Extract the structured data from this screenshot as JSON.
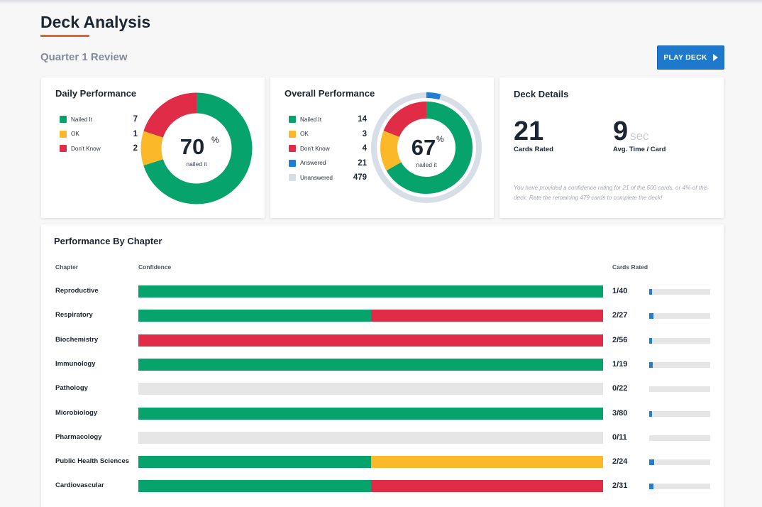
{
  "page": {
    "title": "Deck Analysis",
    "subtitle": "Quarter 1 Review",
    "play_button": "PLAY DECK",
    "accent": "#e8611f",
    "button_color": "#1e78cc"
  },
  "colors": {
    "nailed": "#07a36d",
    "ok": "#fbb829",
    "dont_know": "#e02c47",
    "answered": "#1f7fd6",
    "unanswered": "#d8dee8",
    "empty": "#e6e6e6"
  },
  "daily": {
    "title": "Daily Performance",
    "legend": [
      {
        "label": "Nailed It",
        "count": "7",
        "color": "#07a36d"
      },
      {
        "label": "OK",
        "count": "1",
        "color": "#fbb829"
      },
      {
        "label": "Don't Know",
        "count": "2",
        "color": "#e02c47"
      }
    ],
    "percent": "70",
    "percent_sign": "%",
    "caption": "nailed it",
    "segments": [
      {
        "value": 7,
        "color": "#07a36d"
      },
      {
        "value": 1,
        "color": "#fbb829"
      },
      {
        "value": 2,
        "color": "#e02c47"
      }
    ]
  },
  "overall": {
    "title": "Overall Performance",
    "legend": [
      {
        "label": "Nailed It",
        "count": "14",
        "color": "#07a36d"
      },
      {
        "label": "OK",
        "count": "3",
        "color": "#fbb829"
      },
      {
        "label": "Don't Know",
        "count": "4",
        "color": "#e02c47"
      },
      {
        "label": "Answered",
        "count": "21",
        "color": "#1f7fd6"
      },
      {
        "label": "Unanswered",
        "count": "479",
        "color": "#d8dee8"
      }
    ],
    "percent": "67",
    "percent_sign": "%",
    "caption": "nailed it",
    "inner_segments": [
      {
        "value": 14,
        "color": "#07a36d"
      },
      {
        "value": 3,
        "color": "#fbb829"
      },
      {
        "value": 4,
        "color": "#e02c47"
      }
    ],
    "outer_segments": [
      {
        "value": 21,
        "color": "#1f7fd6"
      },
      {
        "value": 479,
        "color": "#d8dee8"
      }
    ]
  },
  "deck_details": {
    "title": "Deck Details",
    "cards_rated": "21",
    "cards_rated_label": "Cards Rated",
    "avg_time": "9",
    "avg_time_unit": "sec",
    "avg_time_label": "Avg. Time / Card",
    "note": "You have provided a confidence rating for 21 of the 500 cards, or 4% of this deck. Rate the remaining 479 cards to complete the deck!"
  },
  "chapters": {
    "title": "Performance By Chapter",
    "headers": {
      "chapter": "Chapter",
      "confidence": "Confidence",
      "rated": "Cards Rated"
    },
    "rows": [
      {
        "name": "Reproductive",
        "rated": "1/40",
        "progress": 0.025,
        "segments": [
          {
            "fraction": 1.0,
            "color": "#07a36d"
          }
        ]
      },
      {
        "name": "Respiratory",
        "rated": "2/27",
        "progress": 0.074,
        "segments": [
          {
            "fraction": 0.5,
            "color": "#07a36d"
          },
          {
            "fraction": 0.5,
            "color": "#e02c47"
          }
        ]
      },
      {
        "name": "Biochemistry",
        "rated": "2/56",
        "progress": 0.036,
        "segments": [
          {
            "fraction": 1.0,
            "color": "#e02c47"
          }
        ]
      },
      {
        "name": "Immunology",
        "rated": "1/19",
        "progress": 0.053,
        "segments": [
          {
            "fraction": 1.0,
            "color": "#07a36d"
          }
        ]
      },
      {
        "name": "Pathology",
        "rated": "0/22",
        "progress": 0,
        "segments": []
      },
      {
        "name": "Microbiology",
        "rated": "3/80",
        "progress": 0.038,
        "segments": [
          {
            "fraction": 1.0,
            "color": "#07a36d"
          }
        ]
      },
      {
        "name": "Pharmacology",
        "rated": "0/11",
        "progress": 0,
        "segments": []
      },
      {
        "name": "Public Health Sciences",
        "rated": "2/24",
        "progress": 0.083,
        "segments": [
          {
            "fraction": 0.5,
            "color": "#07a36d"
          },
          {
            "fraction": 0.5,
            "color": "#fbb829"
          }
        ]
      },
      {
        "name": "Cardiovascular",
        "rated": "2/31",
        "progress": 0.065,
        "segments": [
          {
            "fraction": 0.5,
            "color": "#07a36d"
          },
          {
            "fraction": 0.5,
            "color": "#e02c47"
          }
        ]
      }
    ]
  }
}
